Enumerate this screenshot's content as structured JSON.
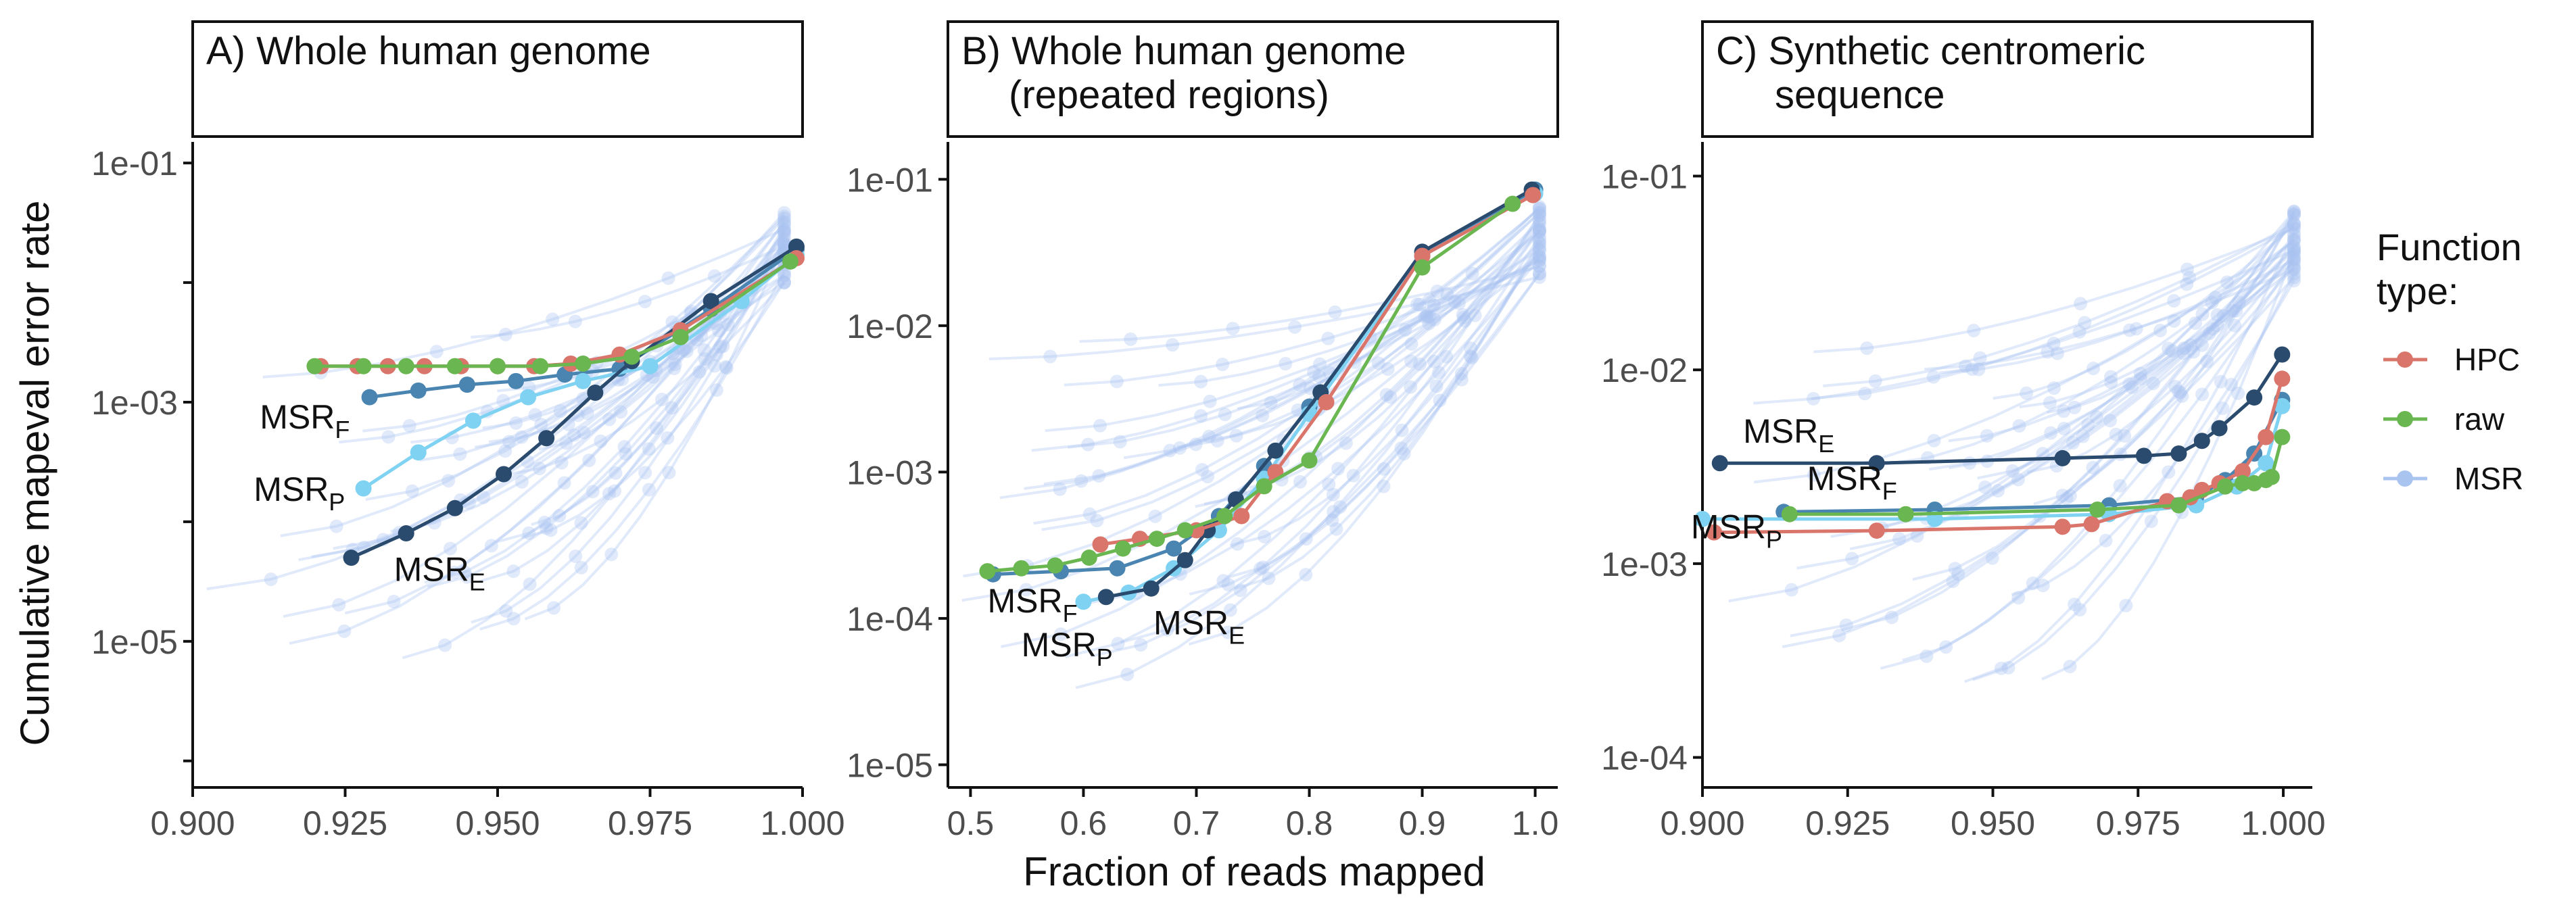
{
  "figure": {
    "ylabel": "Cumulative mapeval error rate",
    "xlabel": "Fraction of reads mapped",
    "legend": {
      "title_line1": "Function",
      "title_line2": "type:",
      "entries": [
        {
          "label": "HPC",
          "color": "#d9756a"
        },
        {
          "label": "raw",
          "color": "#6ab650"
        },
        {
          "label": "MSR",
          "color": "#aac4f0"
        }
      ]
    },
    "colors": {
      "hpc": "#d9756a",
      "raw": "#6ab650",
      "msr_bg": "#a9c3f2",
      "msr_e": "#2a4b6d",
      "msr_f": "#4a84b0",
      "msr_p": "#7fd2f2"
    }
  },
  "chart_data": [
    {
      "type": "line",
      "panel": "A",
      "title_line1": "A) Whole human genome",
      "title_line2": "",
      "xlim": [
        0.9,
        1.0
      ],
      "ylim": [
        6e-07,
        0.15
      ],
      "yscale": "log",
      "xticks": [
        0.9,
        0.925,
        0.95,
        0.975,
        1.0
      ],
      "xticklabels": [
        "0.900",
        "0.925",
        "0.950",
        "0.975",
        "1.000"
      ],
      "yticks": [
        1e-05,
        0.001,
        0.1
      ],
      "yticklabels": [
        "1e-05",
        "1e-03",
        "1e-01"
      ],
      "series": [
        {
          "name": "MSR_F",
          "color_key": "msr_f",
          "x": [
            0.929,
            0.937,
            0.945,
            0.953,
            0.961,
            0.97,
            0.985,
            0.999
          ],
          "y": [
            0.0011,
            0.00125,
            0.0014,
            0.0015,
            0.0017,
            0.0019,
            0.006,
            0.019
          ]
        },
        {
          "name": "MSR_P",
          "color_key": "msr_p",
          "x": [
            0.928,
            0.937,
            0.946,
            0.955,
            0.964,
            0.975,
            0.99,
            0.999
          ],
          "y": [
            0.00019,
            0.00038,
            0.0007,
            0.0011,
            0.0015,
            0.002,
            0.007,
            0.017
          ]
        },
        {
          "name": "MSR_E",
          "color_key": "msr_e",
          "x": [
            0.926,
            0.935,
            0.943,
            0.951,
            0.958,
            0.966,
            0.972,
            0.985,
            0.999
          ],
          "y": [
            5e-05,
            8e-05,
            0.00013,
            0.00025,
            0.0005,
            0.0012,
            0.0022,
            0.007,
            0.02
          ]
        },
        {
          "name": "HPC",
          "color_key": "hpc",
          "x": [
            0.921,
            0.927,
            0.932,
            0.938,
            0.944,
            0.95,
            0.956,
            0.962,
            0.97,
            0.98,
            0.999
          ],
          "y": [
            0.002,
            0.002,
            0.002,
            0.002,
            0.002,
            0.002,
            0.002,
            0.0021,
            0.0025,
            0.004,
            0.016
          ]
        },
        {
          "name": "raw",
          "color_key": "raw",
          "x": [
            0.92,
            0.928,
            0.935,
            0.943,
            0.95,
            0.957,
            0.964,
            0.972,
            0.98,
            0.998
          ],
          "y": [
            0.002,
            0.002,
            0.002,
            0.002,
            0.002,
            0.002,
            0.0021,
            0.0024,
            0.0035,
            0.015
          ]
        }
      ],
      "labels": [
        {
          "text": "MSR",
          "sub": "F",
          "x": 0.911,
          "y": 0.0006
        },
        {
          "text": "MSR",
          "sub": "P",
          "x": 0.91,
          "y": 0.00015
        },
        {
          "text": "MSR",
          "sub": "E",
          "x": 0.933,
          "y": 3.2e-05
        }
      ]
    },
    {
      "type": "line",
      "panel": "B",
      "title_line1": "B) Whole human genome",
      "title_line2": "(repeated regions)",
      "xlim": [
        0.48,
        1.02
      ],
      "ylim": [
        7e-06,
        0.18
      ],
      "yscale": "log",
      "xticks": [
        0.5,
        0.6,
        0.7,
        0.8,
        0.9,
        1.0
      ],
      "xticklabels": [
        "0.5",
        "0.6",
        "0.7",
        "0.8",
        "0.9",
        "1.0"
      ],
      "yticks": [
        1e-05,
        0.0001,
        0.001,
        0.01,
        0.1
      ],
      "yticklabels": [
        "1e-05",
        "1e-04",
        "1e-03",
        "1e-02",
        "1e-01"
      ],
      "series": [
        {
          "name": "MSR_F",
          "color_key": "msr_f",
          "x": [
            0.52,
            0.58,
            0.63,
            0.68,
            0.72,
            0.76,
            0.8,
            0.9,
            1.0
          ],
          "y": [
            0.0002,
            0.00021,
            0.00022,
            0.0003,
            0.0005,
            0.0011,
            0.0028,
            0.03,
            0.085
          ]
        },
        {
          "name": "MSR_P",
          "color_key": "msr_p",
          "x": [
            0.6,
            0.64,
            0.68,
            0.72,
            0.76,
            0.8,
            0.9,
            1.0
          ],
          "y": [
            0.00013,
            0.00015,
            0.00022,
            0.0004,
            0.0009,
            0.0025,
            0.03,
            0.08
          ]
        },
        {
          "name": "MSR_E",
          "color_key": "msr_e",
          "x": [
            0.62,
            0.66,
            0.69,
            0.71,
            0.735,
            0.77,
            0.81,
            0.9,
            0.997
          ],
          "y": [
            0.00014,
            0.00016,
            0.00025,
            0.0004,
            0.00065,
            0.0014,
            0.0035,
            0.032,
            0.085
          ]
        },
        {
          "name": "HPC",
          "color_key": "hpc",
          "x": [
            0.615,
            0.65,
            0.7,
            0.74,
            0.77,
            0.815,
            0.9,
            0.998
          ],
          "y": [
            0.00032,
            0.00035,
            0.0004,
            0.0005,
            0.001,
            0.003,
            0.03,
            0.078
          ]
        },
        {
          "name": "raw",
          "color_key": "raw",
          "x": [
            0.515,
            0.545,
            0.575,
            0.605,
            0.635,
            0.665,
            0.69,
            0.725,
            0.76,
            0.8,
            0.9,
            0.98
          ],
          "y": [
            0.00021,
            0.00022,
            0.00023,
            0.00026,
            0.0003,
            0.00035,
            0.0004,
            0.0005,
            0.0008,
            0.0012,
            0.025,
            0.068
          ]
        }
      ],
      "labels": [
        {
          "text": "MSR",
          "sub": "F",
          "x": 0.515,
          "y": 0.00011
        },
        {
          "text": "MSR",
          "sub": "P",
          "x": 0.545,
          "y": 5.5e-05
        },
        {
          "text": "MSR",
          "sub": "E",
          "x": 0.662,
          "y": 7.8e-05
        }
      ]
    },
    {
      "type": "line",
      "panel": "C",
      "title_line1": "C) Synthetic centromeric",
      "title_line2": "sequence",
      "xlim": [
        0.9,
        1.005
      ],
      "ylim": [
        7e-05,
        0.15
      ],
      "yscale": "log",
      "xticks": [
        0.9,
        0.925,
        0.95,
        0.975,
        1.0
      ],
      "xticklabels": [
        "0.900",
        "0.925",
        "0.950",
        "0.975",
        "1.000"
      ],
      "yticks": [
        0.0001,
        0.001,
        0.01,
        0.1
      ],
      "yticklabels": [
        "1e-04",
        "1e-03",
        "1e-02",
        "1e-01"
      ],
      "series": [
        {
          "name": "MSR_E",
          "color_key": "msr_e",
          "x": [
            0.903,
            0.93,
            0.962,
            0.976,
            0.982,
            0.986,
            0.989,
            0.995,
            0.9998
          ],
          "y": [
            0.0033,
            0.0033,
            0.0035,
            0.0036,
            0.0037,
            0.0043,
            0.005,
            0.0072,
            0.012
          ]
        },
        {
          "name": "MSR_F",
          "color_key": "msr_f",
          "x": [
            0.914,
            0.94,
            0.97,
            0.985,
            0.99,
            0.995,
            0.9998
          ],
          "y": [
            0.00185,
            0.0019,
            0.002,
            0.0022,
            0.0027,
            0.0037,
            0.007
          ]
        },
        {
          "name": "MSR_P",
          "color_key": "msr_p",
          "x": [
            0.9,
            0.94,
            0.97,
            0.985,
            0.992,
            0.997,
            0.9998
          ],
          "y": [
            0.0017,
            0.0017,
            0.0018,
            0.002,
            0.0025,
            0.0033,
            0.0065
          ]
        },
        {
          "name": "HPC",
          "color_key": "hpc",
          "x": [
            0.902,
            0.93,
            0.962,
            0.967,
            0.98,
            0.984,
            0.986,
            0.989,
            0.993,
            0.997,
            0.9998
          ],
          "y": [
            0.00145,
            0.00148,
            0.00155,
            0.0016,
            0.0021,
            0.0022,
            0.0024,
            0.0026,
            0.003,
            0.0045,
            0.009
          ]
        },
        {
          "name": "raw",
          "color_key": "raw",
          "x": [
            0.915,
            0.935,
            0.968,
            0.982,
            0.99,
            0.993,
            0.995,
            0.997,
            0.998,
            0.9998
          ],
          "y": [
            0.0018,
            0.0018,
            0.0019,
            0.002,
            0.0025,
            0.0026,
            0.0026,
            0.0027,
            0.0028,
            0.0045
          ]
        }
      ],
      "labels": [
        {
          "text": "MSR",
          "sub": "E",
          "x": 0.907,
          "y": 0.0042
        },
        {
          "text": "MSR",
          "sub": "F",
          "x": 0.918,
          "y": 0.0024
        },
        {
          "text": "MSR",
          "sub": "P",
          "x": 0.898,
          "y": 0.00135
        }
      ]
    }
  ]
}
